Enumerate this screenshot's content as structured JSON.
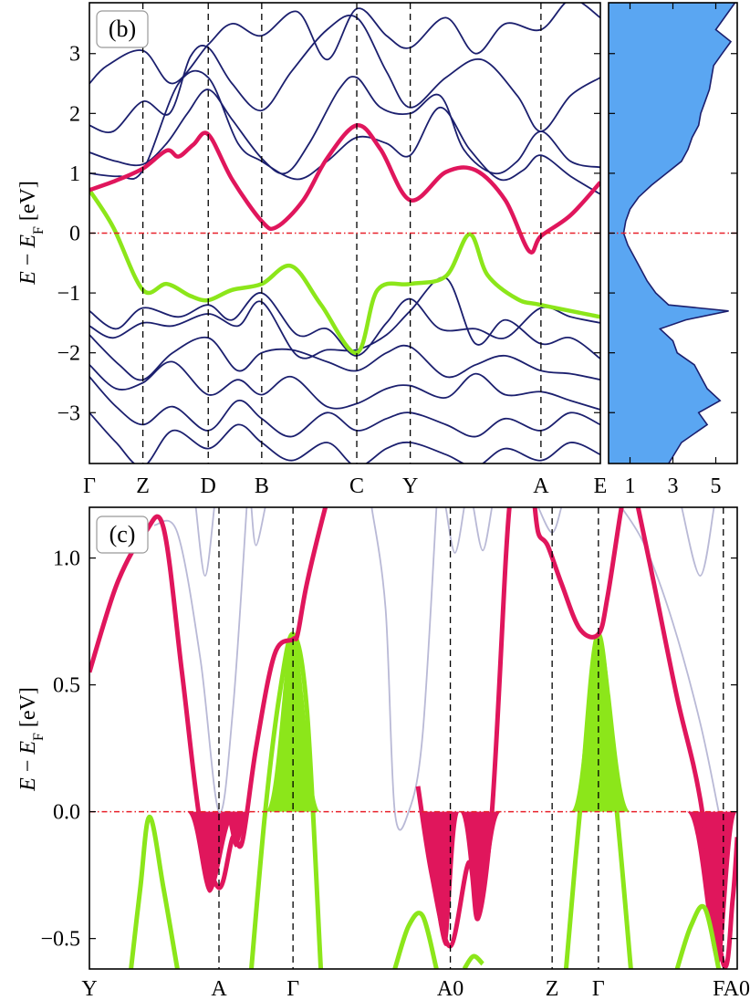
{
  "chart_data": [
    {
      "id": "b",
      "type": "line",
      "panel_label": "(b)",
      "ylabel_main": "E",
      "ylabel_minus": "− E",
      "ylabel_sub": "F",
      "ylabel_unit": " [eV]",
      "ylim": [
        -3.85,
        3.85
      ],
      "yticks": [
        -3,
        -2,
        -1,
        0,
        1,
        2,
        3
      ],
      "ytick_labels": [
        "−3",
        "−2",
        "−1",
        "0",
        "1",
        "2",
        "3"
      ],
      "k_labels": [
        "Γ",
        "Z",
        "D",
        "B",
        "C",
        "Y",
        "A",
        "E"
      ],
      "k_positions": [
        0,
        0.9,
        2.0,
        2.9,
        4.5,
        5.4,
        7.6,
        8.6
      ],
      "fermi_level": 0,
      "highlight_colors": {
        "upper": "#e0165c",
        "lower": "#8ce61a",
        "bands": "#1b1f6e"
      },
      "highlight_upper": {
        "x": [
          0,
          0.45,
          0.9,
          1.3,
          1.5,
          1.75,
          2.0,
          2.4,
          2.9,
          3.15,
          3.6,
          4.0,
          4.5,
          4.9,
          5.4,
          6.0,
          6.5,
          7.0,
          7.4,
          7.6,
          8.1,
          8.6
        ],
        "y": [
          0.72,
          0.88,
          1.08,
          1.38,
          1.28,
          1.48,
          1.65,
          0.9,
          0.2,
          0.1,
          0.55,
          1.25,
          1.8,
          1.4,
          0.55,
          1.02,
          1.05,
          0.55,
          -0.3,
          -0.05,
          0.3,
          0.85
        ]
      },
      "highlight_lower": {
        "x": [
          0,
          0.4,
          0.9,
          1.3,
          1.7,
          2.0,
          2.4,
          2.9,
          3.4,
          3.9,
          4.5,
          4.85,
          5.4,
          6.0,
          6.4,
          6.7,
          7.2,
          7.6,
          8.6
        ],
        "y": [
          0.72,
          0.1,
          -0.95,
          -0.85,
          -1.05,
          -1.12,
          -0.95,
          -0.85,
          -0.55,
          -1.2,
          -2.0,
          -0.95,
          -0.85,
          -0.72,
          -0.02,
          -0.7,
          -1.1,
          -1.2,
          -1.4
        ]
      },
      "bands": [
        {
          "x": [
            0,
            0.3,
            0.9,
            1.4,
            2.0,
            2.4,
            2.9,
            3.5,
            4.0,
            4.5,
            5.0,
            5.4,
            6.0,
            6.5,
            7.0,
            7.6,
            8.1,
            8.6
          ],
          "y": [
            2.5,
            2.8,
            3.05,
            2.5,
            3.15,
            3.5,
            3.3,
            3.7,
            2.9,
            3.75,
            3.3,
            3.1,
            3.6,
            3.0,
            3.5,
            3.4,
            3.9,
            3.6
          ]
        },
        {
          "x": [
            0,
            0.4,
            0.9,
            1.35,
            1.7,
            2.0,
            2.4,
            2.9,
            3.4,
            4.0,
            4.5,
            5.0,
            5.4,
            6.0,
            6.6,
            7.2,
            7.6,
            8.1,
            8.6
          ],
          "y": [
            1.8,
            1.7,
            2.2,
            2.0,
            2.95,
            3.1,
            2.5,
            2.05,
            2.7,
            3.4,
            3.6,
            2.7,
            2.1,
            2.6,
            2.9,
            2.3,
            1.7,
            2.3,
            2.6
          ]
        },
        {
          "x": [
            0,
            0.45,
            0.9,
            1.3,
            1.65,
            2.0,
            2.4,
            2.9,
            3.3,
            3.7,
            4.2,
            4.5,
            4.9,
            5.4,
            5.9,
            6.3,
            6.8,
            7.2,
            7.6,
            8.1,
            8.6
          ],
          "y": [
            1.35,
            1.2,
            1.15,
            1.5,
            2.0,
            2.4,
            1.9,
            1.25,
            1.0,
            1.5,
            2.4,
            2.6,
            2.1,
            2.0,
            2.3,
            1.4,
            1.0,
            1.2,
            1.7,
            1.2,
            1.1
          ]
        },
        {
          "x": [
            0,
            0.5,
            0.9,
            1.5,
            2.0,
            2.5,
            2.9,
            3.5,
            4.0,
            4.5,
            5.0,
            5.4,
            5.9,
            6.4,
            6.9,
            7.3,
            7.6,
            8.1,
            8.6
          ],
          "y": [
            1.0,
            0.95,
            1.05,
            2.5,
            2.6,
            1.5,
            1.2,
            0.9,
            1.2,
            1.6,
            1.5,
            1.3,
            2.1,
            1.4,
            0.9,
            1.05,
            1.3,
            0.95,
            0.65
          ]
        },
        {
          "x": [
            0,
            0.45,
            0.9,
            1.5,
            2.0,
            2.4,
            2.9,
            3.5,
            4.0,
            4.5,
            5.0,
            5.4,
            5.9,
            6.5,
            7.0,
            7.6,
            8.1,
            8.6
          ],
          "y": [
            -1.3,
            -1.6,
            -1.25,
            -1.4,
            -1.2,
            -1.45,
            -1.0,
            -1.7,
            -1.6,
            -2.05,
            -1.5,
            -1.1,
            -1.6,
            -1.6,
            -1.75,
            -1.25,
            -1.4,
            -1.5
          ]
        },
        {
          "x": [
            0,
            0.4,
            0.9,
            1.4,
            2.0,
            2.5,
            2.9,
            3.5,
            4.0,
            4.5,
            5.0,
            5.4,
            6.0,
            6.5,
            7.0,
            7.6,
            8.1,
            8.6
          ],
          "y": [
            -1.55,
            -1.75,
            -1.5,
            -1.55,
            -1.35,
            -1.55,
            -1.15,
            -2.05,
            -1.95,
            -1.95,
            -1.7,
            -1.3,
            -0.75,
            -1.85,
            -1.45,
            -1.85,
            -1.75,
            -2.1
          ]
        },
        {
          "x": [
            0,
            0.5,
            0.9,
            1.4,
            2.0,
            2.5,
            2.9,
            3.4,
            4.0,
            4.5,
            5.0,
            5.4,
            6.0,
            6.5,
            7.0,
            7.6,
            8.1,
            8.6
          ],
          "y": [
            -1.7,
            -2.2,
            -2.45,
            -2.0,
            -1.75,
            -2.3,
            -2.0,
            -1.95,
            -2.15,
            -2.3,
            -2.0,
            -1.9,
            -2.4,
            -2.2,
            -2.05,
            -2.3,
            -2.35,
            -2.45
          ]
        },
        {
          "x": [
            0,
            0.45,
            0.9,
            1.4,
            2.0,
            2.5,
            2.9,
            3.4,
            4.0,
            4.5,
            5.0,
            5.4,
            6.0,
            6.5,
            7.0,
            7.6,
            8.1,
            8.6
          ],
          "y": [
            -2.2,
            -2.6,
            -2.5,
            -2.15,
            -2.7,
            -2.45,
            -2.7,
            -2.4,
            -2.9,
            -2.85,
            -2.6,
            -2.55,
            -2.75,
            -2.35,
            -2.7,
            -2.65,
            -2.8,
            -2.95
          ]
        },
        {
          "x": [
            0,
            0.45,
            0.9,
            1.4,
            2.0,
            2.5,
            2.9,
            3.4,
            4.0,
            4.5,
            5.0,
            5.4,
            6.0,
            6.5,
            7.0,
            7.6,
            8.1,
            8.6
          ],
          "y": [
            -2.4,
            -2.9,
            -3.2,
            -2.9,
            -3.3,
            -2.8,
            -3.1,
            -3.4,
            -3.0,
            -3.3,
            -3.1,
            -3.0,
            -3.2,
            -3.4,
            -3.1,
            -3.3,
            -3.0,
            -3.2
          ]
        },
        {
          "x": [
            0,
            0.45,
            0.9,
            1.4,
            2.0,
            2.5,
            2.9,
            3.4,
            4.0,
            4.5,
            5.0,
            5.4,
            6.0,
            6.5,
            7.0,
            7.6,
            8.1,
            8.6
          ],
          "y": [
            -3.0,
            -3.5,
            -3.9,
            -3.3,
            -3.6,
            -3.2,
            -3.5,
            -3.8,
            -3.5,
            -3.9,
            -3.6,
            -3.5,
            -3.7,
            -3.9,
            -3.6,
            -3.8,
            -3.5,
            -3.7
          ]
        }
      ]
    },
    {
      "id": "b-dos",
      "type": "area",
      "xticks": [
        1,
        3,
        5
      ],
      "xtick_labels": [
        "1",
        "3",
        "5"
      ],
      "xlim": [
        0,
        6
      ],
      "ylim": [
        -3.85,
        3.85
      ],
      "fill_color": "#5aa6f2",
      "line_color": "#1b1f6e",
      "energy": [
        -3.85,
        -3.5,
        -3.2,
        -3.0,
        -2.8,
        -2.6,
        -2.4,
        -2.2,
        -2.0,
        -1.8,
        -1.6,
        -1.45,
        -1.3,
        -1.2,
        -1.0,
        -0.8,
        -0.6,
        -0.4,
        -0.2,
        0.0,
        0.2,
        0.4,
        0.6,
        0.8,
        1.0,
        1.2,
        1.4,
        1.6,
        1.8,
        2.0,
        2.2,
        2.4,
        2.6,
        2.8,
        3.0,
        3.2,
        3.4,
        3.6,
        3.85
      ],
      "dos": [
        2.8,
        3.4,
        4.6,
        4.2,
        5.2,
        4.6,
        4.3,
        4.0,
        3.2,
        3.0,
        2.4,
        3.6,
        5.6,
        2.8,
        2.2,
        1.8,
        1.5,
        1.2,
        0.9,
        0.7,
        0.8,
        1.0,
        1.4,
        2.0,
        2.7,
        3.4,
        3.7,
        3.9,
        4.2,
        4.3,
        4.5,
        4.7,
        4.8,
        4.9,
        5.3,
        5.7,
        5.0,
        5.4,
        5.9
      ]
    },
    {
      "id": "c",
      "type": "line",
      "panel_label": "(c)",
      "ylabel_main": "E",
      "ylabel_minus": "− E",
      "ylabel_sub": "F",
      "ylabel_unit": " [eV]",
      "ylim": [
        -0.62,
        1.2
      ],
      "yticks": [
        -0.5,
        0.0,
        0.5,
        1.0
      ],
      "ytick_labels": [
        "−0.5",
        "0.0",
        "0.5",
        "1.0"
      ],
      "k_labels": [
        "Y",
        "A",
        "Γ",
        "A0",
        "Z",
        "Γ",
        "FA0"
      ],
      "k_positions": [
        0,
        1.4,
        2.2,
        3.9,
        5.0,
        5.5,
        6.85
      ],
      "end_ticks": [
        0,
        7.0
      ],
      "xlim": [
        0,
        7.0
      ],
      "fermi_level": 0,
      "highlight_upper_color": "#e0165c",
      "highlight_lower_color": "#8ce61a",
      "ghost_color": "#b9b9d6",
      "upper_segments": [
        {
          "x": [
            0,
            0.3,
            0.6,
            0.8,
            1.0,
            1.2,
            1.4,
            1.55,
            1.65,
            1.8,
            2.0,
            2.2,
            2.25,
            2.35,
            2.55,
            2.6
          ],
          "y": [
            0.55,
            0.9,
            1.1,
            1.12,
            0.55,
            -0.05,
            -0.3,
            -0.1,
            -0.12,
            0.25,
            0.62,
            0.68,
            0.7,
            0.9,
            1.2,
            1.25
          ]
        },
        {
          "x": [
            3.55,
            3.7,
            3.9,
            4.1,
            4.2,
            4.35,
            4.5,
            4.55
          ],
          "y": [
            0.1,
            -0.25,
            -0.53,
            -0.2,
            -0.42,
            0.0,
            1.0,
            1.25
          ]
        },
        {
          "x": [
            4.8,
            4.85,
            4.95,
            5.1,
            5.3,
            5.5,
            5.6,
            5.75,
            5.8
          ],
          "y": [
            1.25,
            1.1,
            1.05,
            0.9,
            0.72,
            0.7,
            0.85,
            1.2,
            1.25
          ]
        },
        {
          "x": [
            5.9,
            6.1,
            6.35,
            6.6,
            6.85,
            6.95,
            7.0
          ],
          "y": [
            1.25,
            0.9,
            0.45,
            0.05,
            -0.6,
            -0.35,
            -0.1
          ]
        }
      ],
      "lower_segments": [
        {
          "x": [
            0.45,
            0.55,
            0.65,
            0.8,
            0.95
          ],
          "y": [
            -0.62,
            -0.3,
            -0.02,
            -0.3,
            -0.62
          ]
        },
        {
          "x": [
            1.75,
            1.9,
            2.05,
            2.2,
            2.35,
            2.5
          ],
          "y": [
            -0.62,
            0.0,
            0.45,
            0.7,
            0.4,
            -0.62
          ]
        },
        {
          "x": [
            3.3,
            3.45,
            3.6,
            3.75
          ],
          "y": [
            -0.62,
            -0.45,
            -0.41,
            -0.62
          ]
        },
        {
          "x": [
            4.05,
            4.15,
            4.25
          ],
          "y": [
            -0.62,
            -0.57,
            -0.6
          ]
        },
        {
          "x": [
            5.15,
            5.3,
            5.5,
            5.7,
            5.85
          ],
          "y": [
            -0.62,
            0.0,
            0.7,
            0.0,
            -0.62
          ]
        },
        {
          "x": [
            6.35,
            6.5,
            6.65,
            6.8
          ],
          "y": [
            -0.62,
            -0.45,
            -0.38,
            -0.62
          ]
        }
      ],
      "ghost_segments": [
        {
          "x": [
            0.7,
            0.95,
            1.2,
            1.4,
            1.55,
            1.7
          ],
          "y": [
            1.13,
            1.1,
            0.6,
            0.0,
            0.4,
            1.2
          ]
        },
        {
          "x": [
            1.15,
            1.25,
            1.35
          ],
          "y": [
            1.2,
            0.93,
            1.2
          ]
        },
        {
          "x": [
            1.75,
            1.8,
            1.9
          ],
          "y": [
            1.2,
            1.05,
            1.2
          ]
        },
        {
          "x": [
            3.05,
            3.2,
            3.3,
            3.45,
            3.6,
            3.75
          ],
          "y": [
            1.2,
            0.8,
            0.0,
            0.0,
            0.3,
            1.2
          ]
        },
        {
          "x": [
            3.85,
            3.95,
            4.05
          ],
          "y": [
            1.2,
            1.02,
            1.2
          ]
        },
        {
          "x": [
            4.15,
            4.25,
            4.35
          ],
          "y": [
            1.2,
            1.03,
            1.2
          ]
        },
        {
          "x": [
            4.85,
            5.0,
            5.1
          ],
          "y": [
            1.2,
            1.1,
            1.2
          ]
        },
        {
          "x": [
            5.75,
            6.0,
            6.3,
            6.6,
            6.8
          ],
          "y": [
            1.2,
            1.05,
            0.75,
            0.35,
            0.0
          ]
        },
        {
          "x": [
            6.4,
            6.6,
            6.75
          ],
          "y": [
            1.2,
            0.93,
            1.2
          ]
        }
      ],
      "upper_pockets": [
        {
          "x0": 1.05,
          "x1": 1.6,
          "min": -0.32,
          "center": 1.3
        },
        {
          "x0": 1.45,
          "x1": 1.75,
          "min": -0.14,
          "center": 1.58
        },
        {
          "x0": 3.55,
          "x1": 4.0,
          "min": -0.53,
          "center": 3.85
        },
        {
          "x0": 4.0,
          "x1": 4.45,
          "min": -0.43,
          "center": 4.2
        },
        {
          "x0": 6.45,
          "x1": 7.0,
          "min": -0.6,
          "center": 6.8
        }
      ],
      "lower_pockets": [
        {
          "x0": 1.9,
          "x1": 2.5,
          "max": 0.7,
          "center": 2.2
        },
        {
          "x0": 5.2,
          "x1": 5.85,
          "max": 0.7,
          "center": 5.5
        }
      ]
    }
  ]
}
